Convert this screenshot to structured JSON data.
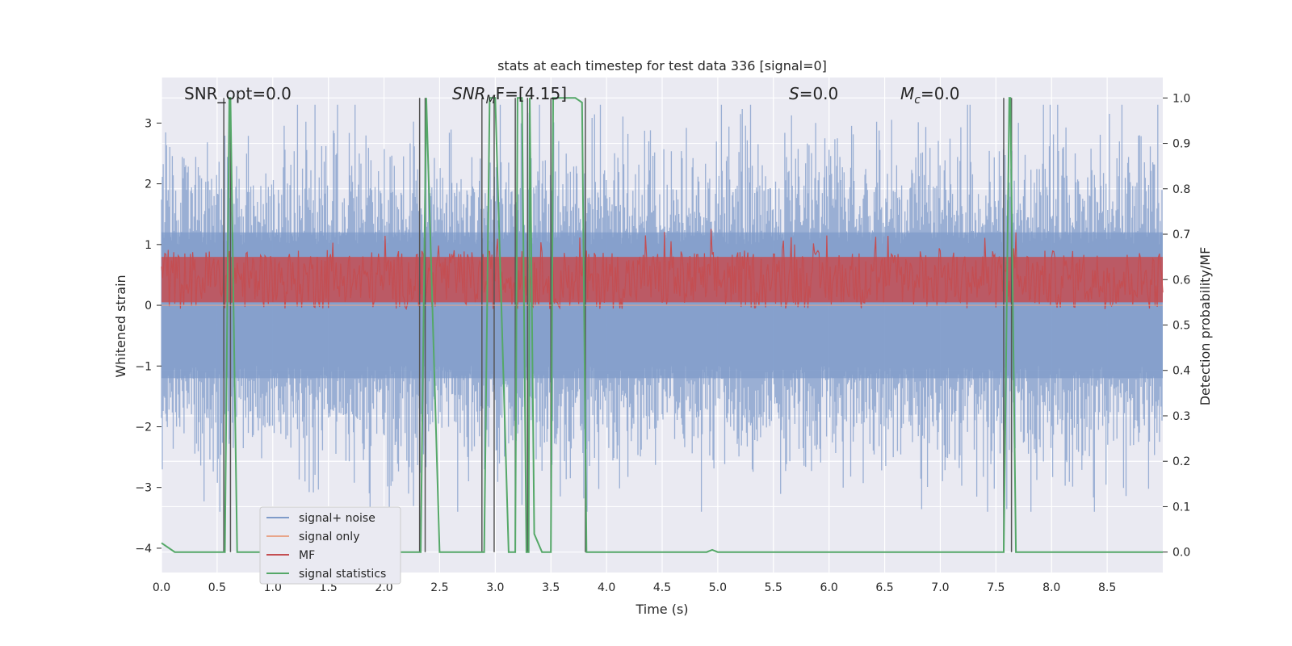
{
  "chart_data": {
    "type": "line",
    "title": "stats at each timestep for test data 336 [signal=0]",
    "xlabel": "Time (s)",
    "ylabel": "Whitened strain",
    "y2label": "Detection probability/MF",
    "xlim": [
      0.0,
      9.0
    ],
    "ylim": [
      -4.4,
      3.75
    ],
    "y2lim": [
      -0.045,
      1.045
    ],
    "xticks": [
      "0.0",
      "0.5",
      "1.0",
      "1.5",
      "2.0",
      "2.5",
      "3.0",
      "3.5",
      "4.0",
      "4.5",
      "5.0",
      "5.5",
      "6.0",
      "6.5",
      "7.0",
      "7.5",
      "8.0",
      "8.5"
    ],
    "yticks": [
      "3",
      "2",
      "1",
      "0",
      "−1",
      "−2",
      "−3",
      "−4"
    ],
    "y2ticks": [
      "1.0",
      "0.9",
      "0.8",
      "0.7",
      "0.6",
      "0.5",
      "0.4",
      "0.3",
      "0.2",
      "0.1",
      "0.0"
    ],
    "grid": true,
    "legend_position": "lower-left",
    "annotations": {
      "snr_opt": "SNR_opt=0.0",
      "snr_mf_prefix": "SNR",
      "snr_mf_sub": "M",
      "snr_mf_suffix": "F=[4.15]",
      "s_label": "S",
      "s_value": "=0.0",
      "mc_label": "M",
      "mc_sub": "c",
      "mc_value": "=0.0"
    },
    "series": [
      {
        "name": "signal+ noise",
        "color": "#7f9bc9",
        "description_values": "whitened noise, roughly zero-mean, amplitude mostly within ±2.5, peaks ~3.3 and dips to ~-3.4",
        "envelope": {
          "min": -3.4,
          "max": 3.3,
          "typical_abs": 1.5
        }
      },
      {
        "name": "signal only",
        "color": "#e8a58a",
        "values_constant": 0.0
      },
      {
        "name": "MF",
        "color": "#c44e52",
        "axis": "y2",
        "band": {
          "low": 0.55,
          "high": 0.65
        }
      },
      {
        "name": "signal statistics",
        "color": "#55a868",
        "axis": "y2",
        "x": [
          0.0,
          0.12,
          0.25,
          0.55,
          0.57,
          0.61,
          0.62,
          0.68,
          0.7,
          2.31,
          2.33,
          2.38,
          2.5,
          2.88,
          2.9,
          2.95,
          2.99,
          3.0,
          3.12,
          3.18,
          3.2,
          3.24,
          3.28,
          3.3,
          3.31,
          3.35,
          3.42,
          3.5,
          3.52,
          3.56,
          3.66,
          3.72,
          3.78,
          3.82,
          3.86,
          4.9,
          4.95,
          5.0,
          7.55,
          7.57,
          7.62,
          7.63,
          7.68,
          7.7,
          9.0
        ],
        "values": [
          0.02,
          0.0,
          0.0,
          0.0,
          0.0,
          1.0,
          1.0,
          0.0,
          0.0,
          0.0,
          0.0,
          1.0,
          0.0,
          0.0,
          0.0,
          1.0,
          1.0,
          1.0,
          0.0,
          0.0,
          1.0,
          1.0,
          0.0,
          0.0,
          1.0,
          0.04,
          0.0,
          0.0,
          1.0,
          1.0,
          1.0,
          1.0,
          0.99,
          0.0,
          0.0,
          0.0,
          0.005,
          0.0,
          0.0,
          0.0,
          1.0,
          1.0,
          0.0,
          0.0,
          0.0
        ]
      }
    ],
    "vertical_markers_x": [
      0.56,
      0.62,
      2.32,
      2.37,
      2.88,
      2.99,
      3.18,
      3.29,
      3.5,
      3.81,
      7.57,
      7.64
    ]
  }
}
